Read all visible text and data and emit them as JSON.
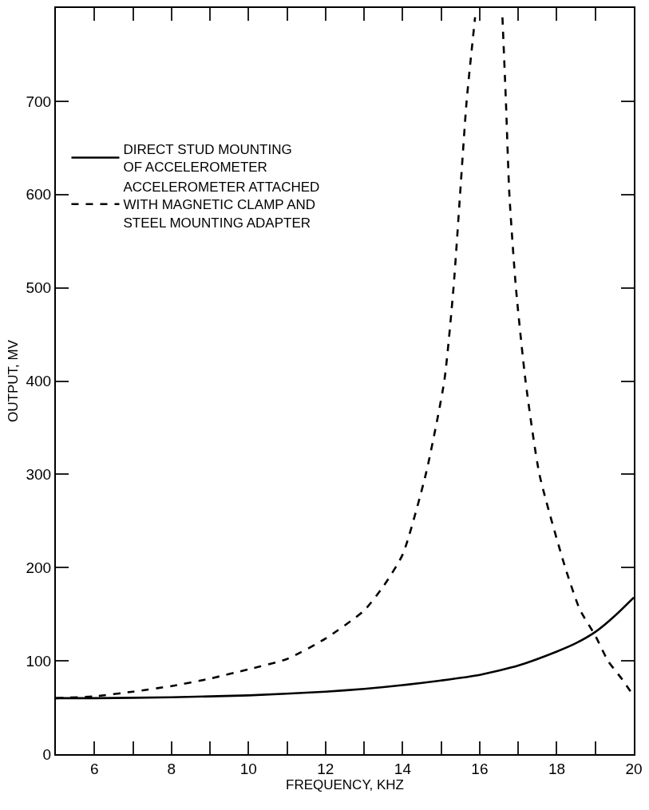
{
  "chart_data": {
    "type": "line",
    "xlabel": "FREQUENCY, KHZ",
    "ylabel": "OUTPUT, MV",
    "xlim": [
      5,
      20
    ],
    "ylim": [
      0,
      800
    ],
    "xticks": [
      6,
      {
        "value": 7,
        "label": null
      },
      8,
      {
        "value": 9,
        "label": null
      },
      10,
      {
        "value": 11,
        "label": null
      },
      12,
      {
        "value": 13,
        "label": null
      },
      14,
      {
        "value": 15,
        "label": null
      },
      16,
      {
        "value": 17,
        "label": null
      },
      18,
      {
        "value": 19,
        "label": null
      },
      20
    ],
    "yticks": [
      0,
      100,
      200,
      300,
      400,
      500,
      600,
      700
    ],
    "legend": "top left",
    "marker": "none",
    "series": [
      {
        "name": "DIRECT STUD MOUNTING\nOF ACCELEROMETER",
        "color": "#000000",
        "line_style": "solid",
        "x": [
          5,
          6,
          8,
          10,
          12,
          13,
          14,
          15,
          16,
          17,
          18,
          18.5,
          19,
          19.5,
          20
        ],
        "values": [
          60,
          60,
          61,
          63,
          67,
          70,
          74,
          79,
          85,
          95,
          110,
          119,
          131,
          148,
          168
        ]
      },
      {
        "name": "ACCELEROMETER ATTACHED\nWITH MAGNETIC CLAMP AND\nSTEEL MOUNTING ADAPTER",
        "color": "#000000",
        "line_style": "dashed",
        "x": [
          5,
          6,
          7,
          8,
          9,
          10,
          11,
          12,
          13,
          13.5,
          14,
          14.6,
          15.08,
          15.32,
          15.49,
          15.66,
          15.88,
          16.25,
          16.59,
          16.68,
          16.77,
          16.94,
          17.19,
          17.55,
          18.22,
          18.6,
          19,
          19.33,
          19.7,
          20
        ],
        "values": [
          60,
          62,
          67,
          73,
          81,
          91,
          102,
          124,
          154,
          180,
          214,
          300,
          400,
          500,
          600,
          700,
          790,
          null,
          790,
          700,
          600,
          500,
          400,
          300,
          200,
          155,
          127,
          100,
          80,
          62
        ]
      }
    ]
  }
}
